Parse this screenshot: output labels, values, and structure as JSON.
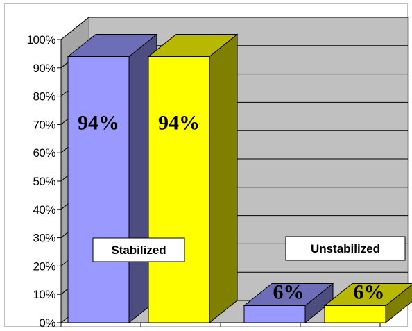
{
  "chart_data": {
    "type": "bar",
    "style": "3d-clustered-column",
    "categories": [
      "Stabilized",
      "Unstabilized"
    ],
    "series": [
      {
        "values": [
          94,
          6
        ],
        "data_labels": [
          "94%",
          "6%"
        ],
        "color": "#9999ff"
      },
      {
        "values": [
          94,
          6
        ],
        "data_labels": [
          "94%",
          "6%"
        ],
        "color": "#ffff00"
      }
    ],
    "y_ticks": [
      "0%",
      "10%",
      "20%",
      "30%",
      "40%",
      "50%",
      "60%",
      "70%",
      "80%",
      "90%",
      "100%"
    ],
    "ylim": [
      0,
      100
    ],
    "grid": true,
    "legend": "none",
    "title": "",
    "xlabel": "",
    "ylabel": ""
  }
}
